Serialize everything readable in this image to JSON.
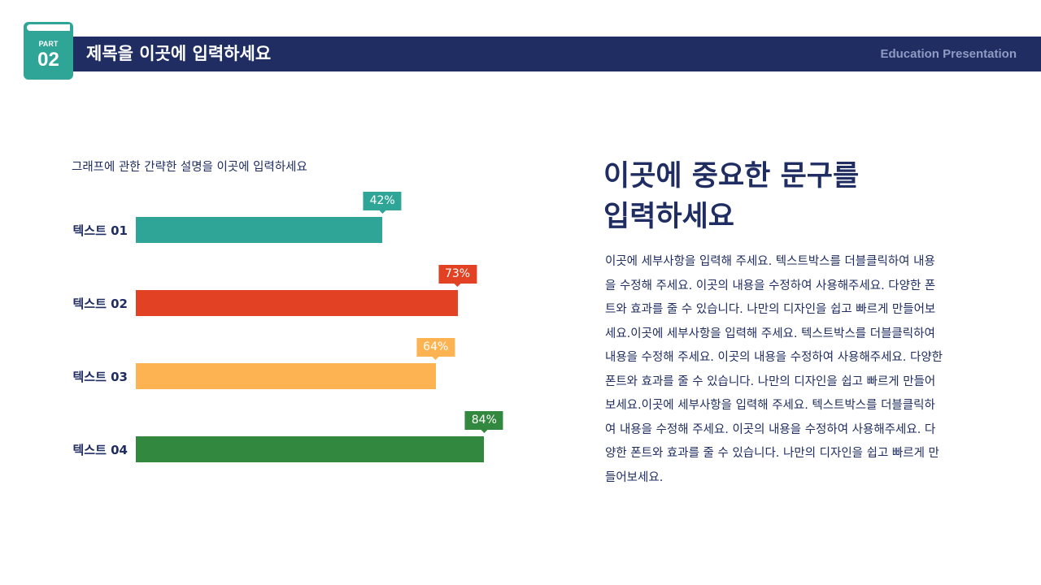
{
  "header": {
    "part_label": "PART",
    "part_number": "02",
    "title": "제목을 이곳에 입력하세요",
    "right_text": "Education Presentation",
    "bar_color": "#1f2d62",
    "badge_color": "#2fa597"
  },
  "chart_data": {
    "type": "bar",
    "orientation": "horizontal",
    "title": "그래프에 관한 간략한 설명을 이곳에 입력하세요",
    "categories": [
      "텍스트 01",
      "텍스트 02",
      "텍스트 03",
      "텍스트 04"
    ],
    "values": [
      42,
      73,
      64,
      84
    ],
    "data_labels": [
      "42%",
      "73%",
      "64%",
      "84%"
    ],
    "colors": [
      "#2fa597",
      "#e34124",
      "#fdb351",
      "#33883f"
    ],
    "grid": false
  },
  "content": {
    "headline_line1": "이곳에 중요한 문구를",
    "headline_line2": "입력하세요",
    "body": "이곳에 세부사항을 입력해 주세요. 텍스트박스를 더블클릭하여 내용을 수정해 주세요. 이곳의 내용을 수정하여 사용해주세요. 다양한 폰트와 효과를 줄 수 있습니다. 나만의 디자인을 쉽고 빠르게 만들어보세요.이곳에 세부사항을 입력해 주세요. 텍스트박스를 더블클릭하여 내용을 수정해 주세요. 이곳의 내용을 수정하여 사용해주세요. 다양한 폰트와 효과를 줄 수 있습니다. 나만의 디자인을 쉽고 빠르게 만들어보세요.이곳에 세부사항을 입력해 주세요. 텍스트박스를 더블클릭하여 내용을 수정해 주세요. 이곳의 내용을 수정하여 사용해주세요. 다양한 폰트와 효과를 줄 수 있습니다. 나만의 디자인을 쉽고 빠르게 만들어보세요."
  }
}
